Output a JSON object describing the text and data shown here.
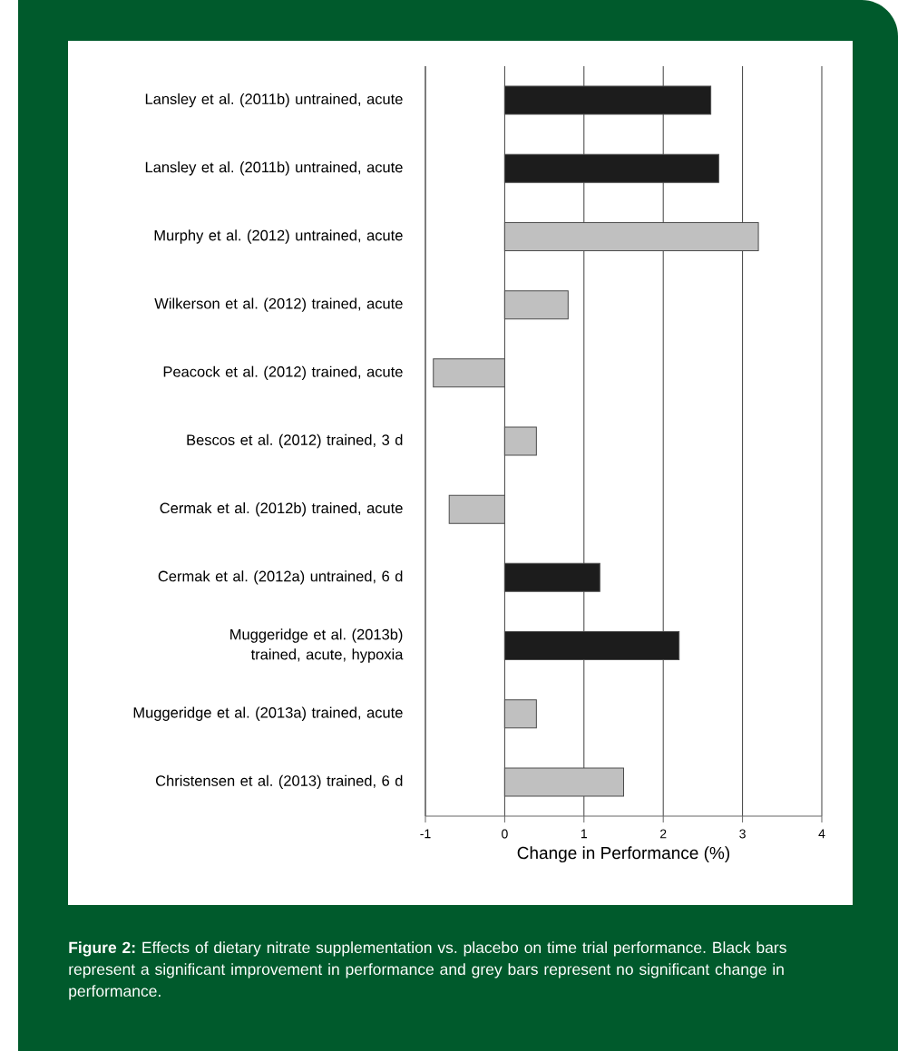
{
  "chart_data": {
    "type": "bar",
    "orientation": "horizontal",
    "categories": [
      "Lansley et al. (2011b) untrained, acute",
      "Lansley et al. (2011b) untrained, acute",
      "Murphy et al. (2012) untrained, acute",
      "Wilkerson et al. (2012) trained, acute",
      "Peacock et al. (2012) trained, acute",
      "Bescos et al. (2012) trained, 3 d",
      "Cermak et al. (2012b) trained, acute",
      "Cermak et al. (2012a) untrained, 6 d",
      "Muggeridge et al. (2013b) trained, acute, hypoxia",
      "Muggeridge et al. (2013a) trained, acute",
      "Christensen et al. (2013) trained, 6 d"
    ],
    "values": [
      2.6,
      2.7,
      3.2,
      0.8,
      -0.9,
      0.4,
      -0.7,
      1.2,
      2.2,
      0.4,
      1.5
    ],
    "colors": [
      "#1c1c1c",
      "#1c1c1c",
      "#c0c0c0",
      "#c0c0c0",
      "#c0c0c0",
      "#c0c0c0",
      "#c0c0c0",
      "#1c1c1c",
      "#1c1c1c",
      "#c0c0c0",
      "#c0c0c0"
    ],
    "xlabel": "Change in Performance (%)",
    "xlim": [
      -1,
      4
    ],
    "xticks": [
      -1,
      0,
      1,
      2,
      3,
      4
    ],
    "grid": "x",
    "annotations": [
      "**Figure 2:** Effects of dietary nitrate supplementation vs. placebo on time trial performance. Black bars represent a significant improvement in performance and grey bars represent no significant change in performance."
    ]
  }
}
